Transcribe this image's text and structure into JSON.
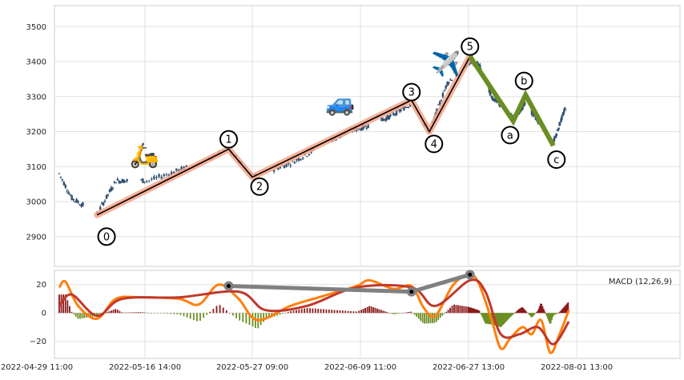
{
  "chart_data": [
    {
      "type": "candlestick",
      "panel": "price",
      "title": "",
      "xlabel": "",
      "ylabel": "",
      "ylim": [
        2815,
        3560
      ],
      "y_ticks": [
        "2900",
        "3000",
        "3100",
        "3200",
        "3300",
        "3400",
        "3500"
      ],
      "grid": true,
      "candle_color": "#2f4f6f",
      "price_anchors": [
        {
          "t": "2022-05-03 00:00",
          "v": 3080
        },
        {
          "t": "2022-05-05 00:00",
          "v": 3010
        },
        {
          "t": "2022-05-09 00:00",
          "v": 2965
        },
        {
          "t": "2022-05-12 00:00",
          "v": 3060
        },
        {
          "t": "2022-05-17 00:00",
          "v": 3060
        },
        {
          "t": "2022-05-21 00:00",
          "v": 3100
        },
        {
          "t": "2022-05-25 00:00",
          "v": 3150
        },
        {
          "t": "2022-05-27 09:00",
          "v": 3070
        },
        {
          "t": "2022-06-01 00:00",
          "v": 3110
        },
        {
          "t": "2022-06-08 00:00",
          "v": 3200
        },
        {
          "t": "2022-06-14 00:00",
          "v": 3240
        },
        {
          "t": "2022-06-18 00:00",
          "v": 3280
        },
        {
          "t": "2022-06-21 00:00",
          "v": 3200
        },
        {
          "t": "2022-06-24 00:00",
          "v": 3340
        },
        {
          "t": "2022-06-28 00:00",
          "v": 3400
        },
        {
          "t": "2022-07-01 00:00",
          "v": 3390
        },
        {
          "t": "2022-07-05 00:00",
          "v": 3300
        },
        {
          "t": "2022-07-12 00:00",
          "v": 3240
        },
        {
          "t": "2022-07-16 00:00",
          "v": 3280
        },
        {
          "t": "2022-07-21 00:00",
          "v": 3220
        },
        {
          "t": "2022-07-25 00:00",
          "v": 3170
        },
        {
          "t": "2022-07-29 00:00",
          "v": 3270
        }
      ],
      "impulse_wave": {
        "color": "#000000",
        "halo_color": "#f4a58a",
        "points": [
          {
            "label": "0",
            "t": "2022-05-09 00:00",
            "v": 2962
          },
          {
            "label": "1",
            "t": "2022-05-25 00:00",
            "v": 3150
          },
          {
            "label": "2",
            "t": "2022-05-27 09:00",
            "v": 3070
          },
          {
            "label": "3",
            "t": "2022-06-18 00:00",
            "v": 3290
          },
          {
            "label": "4",
            "t": "2022-06-21 00:00",
            "v": 3200
          },
          {
            "label": "5",
            "t": "2022-06-28 00:00",
            "v": 3415
          }
        ]
      },
      "corrective_wave": {
        "color": "#6b8e23",
        "points": [
          {
            "label": "5",
            "t": "2022-06-28 00:00",
            "v": 3415
          },
          {
            "label": "a",
            "t": "2022-07-12 00:00",
            "v": 3230
          },
          {
            "label": "b",
            "t": "2022-07-16 00:00",
            "v": 3305
          },
          {
            "label": "c",
            "t": "2022-07-25 00:00",
            "v": 3160
          }
        ]
      },
      "label_positions": [
        {
          "label": "0",
          "t": "2022-05-10 12:00",
          "v": 2900
        },
        {
          "label": "1",
          "t": "2022-05-25 00:00",
          "v": 3178
        },
        {
          "label": "2",
          "t": "2022-05-28 06:00",
          "v": 3043
        },
        {
          "label": "3",
          "t": "2022-06-18 00:00",
          "v": 3313
        },
        {
          "label": "4",
          "t": "2022-06-21 18:00",
          "v": 3165
        },
        {
          "label": "5",
          "t": "2022-06-28 00:00",
          "v": 3443
        },
        {
          "label": "a",
          "t": "2022-07-11 00:00",
          "v": 3190
        },
        {
          "label": "b",
          "t": "2022-07-15 12:00",
          "v": 3345
        },
        {
          "label": "c",
          "t": "2022-07-26 00:00",
          "v": 3120
        }
      ],
      "icons": [
        {
          "name": "scooter-icon",
          "glyph": "🛵",
          "t": "2022-05-16 12:00",
          "v": 3110
        },
        {
          "name": "car-icon",
          "glyph": "🚙",
          "t": "2022-06-07 00:00",
          "v": 3260
        },
        {
          "name": "airplane-icon",
          "glyph": "✈️",
          "t": "2022-06-23 18:00",
          "v": 3370
        }
      ]
    },
    {
      "type": "line+bar",
      "panel": "macd",
      "title": "",
      "legend_text": "MACD (12,26,9)",
      "legend_placement": "top-right",
      "ylim": [
        -32,
        30
      ],
      "y_ticks": [
        "−20",
        "0",
        "20"
      ],
      "x_ticks": [
        "2022-04-29 11:00",
        "2022-05-16 14:00",
        "2022-05-27 09:00",
        "2022-06-09 11:00",
        "2022-06-27 13:00",
        "2022-08-01 13:00"
      ],
      "grid": true,
      "series": [
        {
          "role": "macd",
          "color": "#ff7f0e",
          "points": [
            {
              "t": "2022-05-03 00:00",
              "v": 18
            },
            {
              "t": "2022-05-04 00:00",
              "v": 22
            },
            {
              "t": "2022-05-06 00:00",
              "v": 5
            },
            {
              "t": "2022-05-09 00:00",
              "v": -4
            },
            {
              "t": "2022-05-12 00:00",
              "v": 10
            },
            {
              "t": "2022-05-16 00:00",
              "v": 11
            },
            {
              "t": "2022-05-20 00:00",
              "v": 10
            },
            {
              "t": "2022-05-22 00:00",
              "v": 6
            },
            {
              "t": "2022-05-24 00:00",
              "v": 20
            },
            {
              "t": "2022-05-26 00:00",
              "v": 10
            },
            {
              "t": "2022-05-28 00:00",
              "v": -5
            },
            {
              "t": "2022-06-01 00:00",
              "v": 5
            },
            {
              "t": "2022-06-05 00:00",
              "v": 12
            },
            {
              "t": "2022-06-09 00:00",
              "v": 19
            },
            {
              "t": "2022-06-11 00:00",
              "v": 23
            },
            {
              "t": "2022-06-15 00:00",
              "v": 17
            },
            {
              "t": "2022-06-18 00:00",
              "v": 19
            },
            {
              "t": "2022-06-20 00:00",
              "v": 4
            },
            {
              "t": "2022-06-22 00:00",
              "v": -2
            },
            {
              "t": "2022-06-25 00:00",
              "v": 20
            },
            {
              "t": "2022-06-28 00:00",
              "v": 27
            },
            {
              "t": "2022-07-01 00:00",
              "v": 20
            },
            {
              "t": "2022-07-05 00:00",
              "v": -5
            },
            {
              "t": "2022-07-08 00:00",
              "v": -25
            },
            {
              "t": "2022-07-11 00:00",
              "v": -18
            },
            {
              "t": "2022-07-15 00:00",
              "v": -10
            },
            {
              "t": "2022-07-18 00:00",
              "v": -15
            },
            {
              "t": "2022-07-21 00:00",
              "v": -5
            },
            {
              "t": "2022-07-24 00:00",
              "v": -28
            },
            {
              "t": "2022-07-27 00:00",
              "v": -15
            },
            {
              "t": "2022-07-30 00:00",
              "v": 2
            }
          ]
        },
        {
          "role": "signal",
          "color": "#c0392b",
          "points": [
            {
              "t": "2022-05-03 00:00",
              "v": 5
            },
            {
              "t": "2022-05-05 00:00",
              "v": 13
            },
            {
              "t": "2022-05-09 00:00",
              "v": -2
            },
            {
              "t": "2022-05-13 00:00",
              "v": 10
            },
            {
              "t": "2022-05-20 00:00",
              "v": 11
            },
            {
              "t": "2022-05-26 00:00",
              "v": 15
            },
            {
              "t": "2022-05-29 00:00",
              "v": 2
            },
            {
              "t": "2022-06-03 00:00",
              "v": 5
            },
            {
              "t": "2022-06-09 00:00",
              "v": 18
            },
            {
              "t": "2022-06-18 00:00",
              "v": 18
            },
            {
              "t": "2022-06-22 00:00",
              "v": 5
            },
            {
              "t": "2022-06-28 00:00",
              "v": 23
            },
            {
              "t": "2022-07-03 00:00",
              "v": 15
            },
            {
              "t": "2022-07-08 00:00",
              "v": -15
            },
            {
              "t": "2022-07-14 00:00",
              "v": -15
            },
            {
              "t": "2022-07-20 00:00",
              "v": -10
            },
            {
              "t": "2022-07-25 00:00",
              "v": -22
            },
            {
              "t": "2022-07-30 00:00",
              "v": -6
            }
          ]
        },
        {
          "role": "divergence",
          "color": "#808080",
          "points": [
            {
              "t": "2022-05-25 00:00",
              "v": 19
            },
            {
              "t": "2022-06-18 00:00",
              "v": 15
            },
            {
              "t": "2022-06-28 00:00",
              "v": 27
            }
          ]
        }
      ],
      "histogram_colors": {
        "positive": "#8b1a1a",
        "negative": "#6b8e23"
      }
    }
  ]
}
